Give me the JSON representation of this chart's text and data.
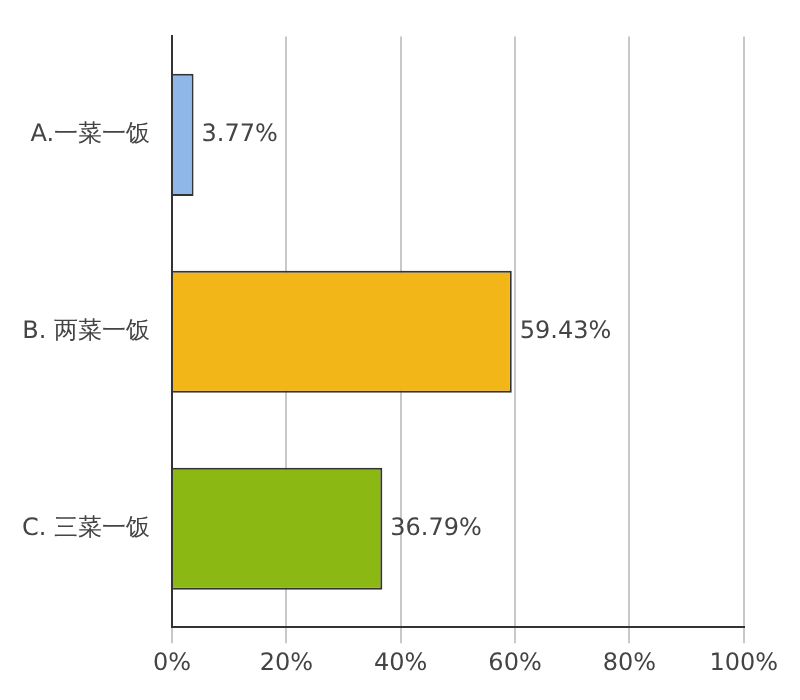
{
  "chart_data": {
    "type": "bar",
    "orientation": "horizontal",
    "categories": [
      "A.一菜一饭",
      "B. 两菜一饭",
      "C. 三菜一饭"
    ],
    "values": [
      3.77,
      59.43,
      36.79
    ],
    "colors": [
      "#8fb8e8",
      "#f2b619",
      "#8cb814"
    ],
    "value_labels": [
      "3.77%",
      "59.43%",
      "36.79%"
    ],
    "xlim": [
      0,
      100
    ],
    "xticks": [
      {
        "value": 0,
        "label": "0%"
      },
      {
        "value": 20,
        "label": "20%"
      },
      {
        "value": 40,
        "label": "40%"
      },
      {
        "value": 60,
        "label": "60%"
      },
      {
        "value": 80,
        "label": "80%"
      },
      {
        "value": 100,
        "label": "100%"
      }
    ],
    "grid": "x",
    "legend": false
  }
}
